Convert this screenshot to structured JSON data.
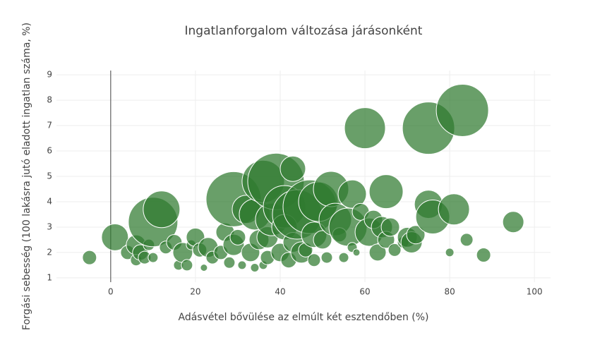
{
  "chart_data": {
    "type": "bubble",
    "title": "Ingatlanforgalom változása járásonként",
    "x_label": "Adásvétel bővülése az elmúlt két esztendőben (%)",
    "y_label": "Forgási sebesség (100 lakásra jutó eladott ingatlan száma, %)",
    "color": "#2f7a2f",
    "xlim": [
      -12.8,
      103.8
    ],
    "ylim": [
      0.83,
      9.17
    ],
    "xticks": [
      0,
      20,
      40,
      60,
      80,
      100
    ],
    "yticks": [
      1,
      2,
      3,
      4,
      5,
      6,
      7,
      8,
      9
    ],
    "grid": true,
    "zero_line": true,
    "x": [
      -5,
      1,
      4,
      6,
      6,
      7,
      8,
      9,
      10,
      10,
      12,
      13,
      15,
      16,
      17,
      18,
      19,
      20,
      21,
      22,
      23,
      24,
      26,
      27,
      28,
      29,
      29,
      30,
      31,
      32,
      33,
      34,
      34,
      35,
      36,
      36,
      37,
      37,
      38,
      39,
      40,
      41,
      41,
      42,
      43,
      43,
      44,
      45,
      46,
      47,
      48,
      48,
      49,
      50,
      51,
      52,
      53,
      54,
      55,
      56,
      57,
      57,
      58,
      59,
      60,
      61,
      62,
      63,
      64,
      65,
      65,
      66,
      67,
      69,
      70,
      71,
      72,
      75,
      75,
      76,
      80,
      81,
      83,
      84,
      88,
      95
    ],
    "values": [
      1.8,
      2.6,
      2.0,
      2.3,
      1.7,
      2.0,
      1.8,
      2.3,
      3.2,
      1.8,
      3.7,
      2.2,
      2.4,
      1.5,
      2.0,
      1.5,
      2.3,
      2.6,
      2.1,
      1.4,
      2.2,
      1.8,
      2.0,
      2.8,
      1.6,
      4.1,
      2.3,
      2.6,
      1.5,
      3.7,
      2.0,
      1.4,
      3.5,
      2.5,
      4.8,
      1.5,
      1.8,
      2.6,
      3.3,
      4.8,
      2.0,
      3.8,
      3.0,
      1.7,
      2.4,
      5.3,
      3.5,
      2.0,
      2.1,
      3.8,
      2.7,
      1.7,
      4.0,
      2.5,
      1.8,
      4.5,
      3.3,
      2.7,
      1.8,
      3.0,
      4.3,
      2.2,
      2.0,
      3.6,
      6.9,
      2.8,
      3.3,
      2.0,
      3.0,
      4.4,
      2.5,
      3.0,
      2.1,
      2.4,
      2.6,
      2.4,
      2.7,
      6.9,
      3.9,
      3.4,
      2.0,
      3.7,
      7.6,
      2.5,
      1.9,
      3.2
    ],
    "sizes": [
      20,
      38,
      20,
      28,
      16,
      22,
      18,
      16,
      70,
      14,
      52,
      18,
      22,
      14,
      28,
      16,
      14,
      26,
      20,
      10,
      28,
      18,
      20,
      26,
      16,
      78,
      30,
      22,
      12,
      40,
      26,
      12,
      44,
      28,
      60,
      12,
      20,
      30,
      46,
      80,
      26,
      60,
      36,
      22,
      28,
      36,
      70,
      30,
      20,
      76,
      36,
      18,
      56,
      26,
      16,
      50,
      46,
      20,
      14,
      54,
      40,
      14,
      10,
      24,
      58,
      40,
      26,
      24,
      30,
      48,
      24,
      26,
      18,
      16,
      28,
      30,
      26,
      74,
      40,
      48,
      12,
      44,
      74,
      18,
      20,
      30
    ]
  }
}
